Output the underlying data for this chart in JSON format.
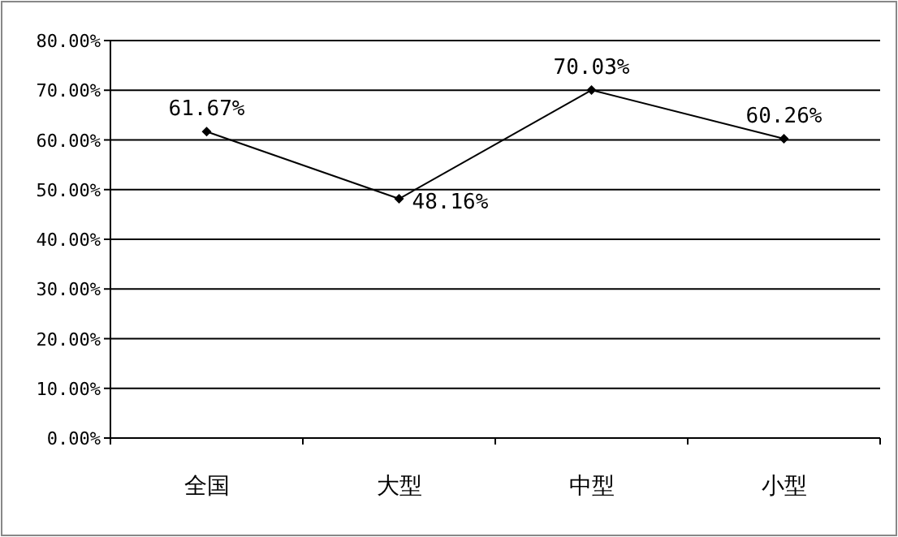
{
  "chart_data": {
    "type": "line",
    "categories": [
      "全国",
      "大型",
      "中型",
      "小型"
    ],
    "series": [
      {
        "color": "#000000",
        "values": [
          61.67,
          48.16,
          70.03,
          60.26
        ],
        "value_labels": [
          "61.67%",
          "48.16%",
          "70.03%",
          "60.26%"
        ]
      }
    ],
    "ylim": [
      0,
      80
    ],
    "yticks": [
      {
        "value": 0,
        "label": "0.00%"
      },
      {
        "value": 10,
        "label": "10.00%"
      },
      {
        "value": 20,
        "label": "20.00%"
      },
      {
        "value": 30,
        "label": "30.00%"
      },
      {
        "value": 40,
        "label": "40.00%"
      },
      {
        "value": 50,
        "label": "50.00%"
      },
      {
        "value": 60,
        "label": "60.00%"
      },
      {
        "value": 70,
        "label": "70.00%"
      },
      {
        "value": 80,
        "label": "80.00%"
      }
    ],
    "grid": "y",
    "marker": "diamond",
    "line_style": "solid"
  }
}
